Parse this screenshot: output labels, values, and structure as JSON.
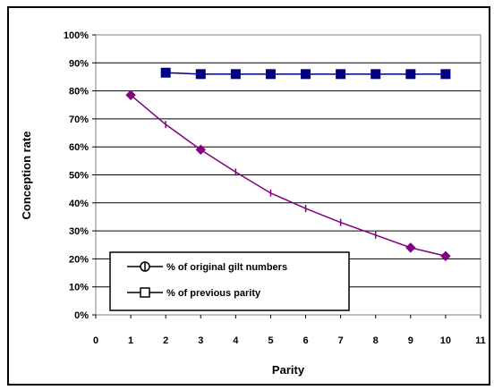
{
  "chart_data": {
    "type": "line",
    "title": "",
    "xlabel": "Parity",
    "ylabel": "Conception rate",
    "xlim": [
      0,
      11
    ],
    "ylim": [
      0,
      100
    ],
    "x_ticks": [
      "0",
      "1",
      "2",
      "3",
      "4",
      "5",
      "6",
      "7",
      "8",
      "9",
      "10",
      "11"
    ],
    "y_ticks": [
      "0%",
      "10%",
      "20%",
      "30%",
      "40%",
      "50%",
      "60%",
      "70%",
      "80%",
      "90%",
      "100%"
    ],
    "grid": "horizontal",
    "legend_position": "bottom-left",
    "series": [
      {
        "name": "% of original gilt numbers",
        "color": "#800080",
        "marker": "diamond",
        "x": [
          1,
          2,
          3,
          4,
          5,
          6,
          7,
          8,
          9,
          10
        ],
        "y": [
          78.5,
          68,
          59,
          51,
          43.5,
          38,
          33,
          28.5,
          24,
          21
        ]
      },
      {
        "name": "% of previous parity",
        "color": "#000080",
        "marker": "square",
        "x": [
          2,
          3,
          4,
          5,
          6,
          7,
          8,
          9,
          10
        ],
        "y": [
          86.5,
          86,
          86,
          86,
          86,
          86,
          86,
          86,
          86
        ]
      }
    ]
  }
}
